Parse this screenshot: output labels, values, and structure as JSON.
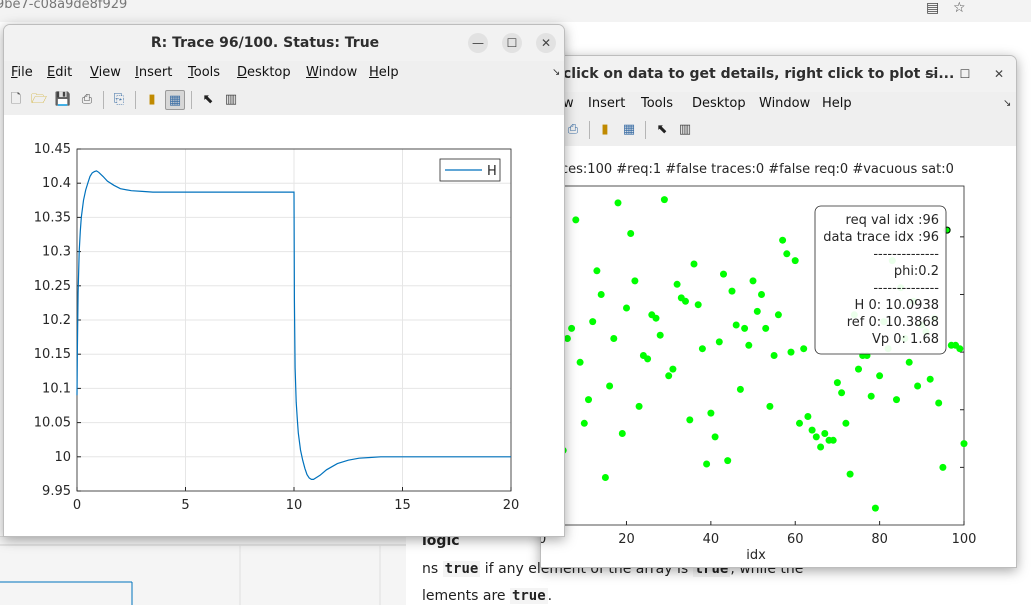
{
  "browser": {
    "url_fragment": "9be7-c08a9de8f929",
    "doc_lines": [
      {
        "pre": "logic",
        "code": "",
        "post": ""
      },
      {
        "pre": "ns ",
        "code": "true",
        "post": " if any element of the array is ",
        "code2": "true",
        "post2": ", while the"
      },
      {
        "pre": "lements are ",
        "code": "true",
        "post": "."
      }
    ]
  },
  "back_window": {
    "title": "click on data to get details, right click to plot si...",
    "menu": [
      "w",
      "Insert",
      "Tools",
      "Desktop",
      "Window",
      "Help"
    ],
    "stats": "ces:100  #req:1  #false traces:0  #false req:0  #vacuous sat:0",
    "datatip": [
      "req val idx :96",
      "data trace idx :96",
      "--------------",
      "phi:0.2",
      "--------------",
      "H 0: 10.0938",
      "ref 0: 10.3868",
      "Vp 0: 1.68"
    ],
    "chart_data": {
      "type": "scatter",
      "xlabel": "idx",
      "xlim": [
        -5,
        100
      ],
      "xticks": [
        "0",
        "20",
        "40",
        "60",
        "80",
        "100"
      ],
      "points_color": "#00ff00",
      "x": [
        1,
        2,
        3,
        4,
        5,
        6,
        7,
        8,
        9,
        10,
        11,
        12,
        13,
        14,
        15,
        16,
        17,
        18,
        19,
        20,
        21,
        22,
        23,
        24,
        25,
        26,
        27,
        28,
        29,
        30,
        31,
        32,
        33,
        34,
        35,
        36,
        37,
        38,
        39,
        40,
        41,
        42,
        43,
        44,
        45,
        46,
        47,
        48,
        49,
        50,
        51,
        52,
        53,
        54,
        55,
        56,
        57,
        58,
        59,
        60,
        61,
        62,
        63,
        64,
        65,
        66,
        67,
        68,
        69,
        70,
        71,
        72,
        73,
        74,
        75,
        76,
        77,
        78,
        79,
        80,
        81,
        82,
        83,
        84,
        85,
        86,
        87,
        88,
        89,
        90,
        91,
        92,
        93,
        94,
        95,
        96,
        97,
        98,
        99,
        100
      ],
      "y": [
        0.62,
        0.45,
        0.82,
        0.7,
        0.22,
        0.55,
        0.58,
        0.9,
        0.48,
        0.3,
        0.37,
        0.6,
        0.75,
        0.68,
        0.14,
        0.41,
        0.55,
        0.95,
        0.27,
        0.64,
        0.86,
        0.72,
        0.35,
        0.5,
        0.49,
        0.62,
        0.61,
        0.56,
        0.96,
        0.44,
        0.46,
        0.71,
        0.67,
        0.66,
        0.31,
        0.77,
        0.65,
        0.52,
        0.18,
        0.33,
        0.26,
        0.54,
        0.74,
        0.19,
        0.69,
        0.59,
        0.4,
        0.58,
        0.53,
        0.72,
        0.63,
        0.68,
        0.58,
        0.35,
        0.5,
        0.62,
        0.84,
        0.8,
        0.51,
        0.78,
        0.3,
        0.52,
        0.32,
        0.28,
        0.26,
        0.23,
        0.27,
        0.25,
        0.25,
        0.42,
        0.39,
        0.3,
        0.15,
        0.62,
        0.46,
        0.5,
        0.5,
        0.38,
        0.05,
        0.44,
        0.6,
        0.52,
        0.78,
        0.37,
        0.7,
        0.55,
        0.48,
        0.66,
        0.41,
        0.59,
        0.57,
        0.43,
        0.61,
        0.36,
        0.17,
        0.87,
        0.53,
        0.53,
        0.52,
        0.24
      ]
    }
  },
  "front_window": {
    "title": "R: Trace 96/100.  Status: True",
    "menu": [
      {
        "label": "File",
        "ul": "F",
        "rest": "ile"
      },
      {
        "label": "Edit",
        "ul": "E",
        "rest": "dit"
      },
      {
        "label": "View",
        "ul": "V",
        "rest": "iew"
      },
      {
        "label": "Insert",
        "ul": "I",
        "rest": "nsert"
      },
      {
        "label": "Tools",
        "ul": "T",
        "rest": "ools"
      },
      {
        "label": "Desktop",
        "ul": "D",
        "rest": "esktop"
      },
      {
        "label": "Window",
        "ul": "W",
        "rest": "indow"
      },
      {
        "label": "Help",
        "ul": "H",
        "rest": "elp"
      }
    ],
    "chart_data": {
      "type": "line",
      "xlim": [
        0,
        20
      ],
      "ylim": [
        9.95,
        10.45
      ],
      "xticks": [
        0,
        5,
        10,
        15,
        20
      ],
      "yticks": [
        9.95,
        10,
        10.05,
        10.1,
        10.15,
        10.2,
        10.25,
        10.3,
        10.35,
        10.4,
        10.45
      ],
      "ytick_labels": [
        "9.95",
        "10",
        "10.05",
        "10.1",
        "10.15",
        "10.2",
        "10.25",
        "10.3",
        "10.35",
        "10.4",
        "10.45"
      ],
      "grid": true,
      "legend": "top-right",
      "series": [
        {
          "name": "H",
          "color": "#0072bd",
          "x": [
            0,
            0.02,
            0.05,
            0.1,
            0.15,
            0.2,
            0.3,
            0.4,
            0.5,
            0.6,
            0.7,
            0.8,
            0.9,
            1.0,
            1.2,
            1.4,
            1.7,
            2.0,
            2.5,
            3.0,
            3.5,
            4.0,
            5.0,
            7.0,
            9.0,
            10.0,
            10.02,
            10.05,
            10.1,
            10.15,
            10.2,
            10.3,
            10.4,
            10.5,
            10.6,
            10.7,
            10.8,
            10.9,
            11.0,
            11.2,
            11.5,
            12.0,
            12.5,
            13.0,
            13.5,
            14.0,
            15.0,
            17.0,
            20.0
          ],
          "y": [
            10.09,
            10.16,
            10.24,
            10.3,
            10.33,
            10.35,
            10.375,
            10.39,
            10.4,
            10.41,
            10.415,
            10.417,
            10.418,
            10.416,
            10.41,
            10.403,
            10.397,
            10.392,
            10.389,
            10.388,
            10.387,
            10.387,
            10.387,
            10.387,
            10.387,
            10.387,
            10.23,
            10.13,
            10.08,
            10.055,
            10.035,
            10.01,
            9.995,
            9.983,
            9.974,
            9.969,
            9.967,
            9.967,
            9.969,
            9.973,
            9.981,
            9.99,
            9.995,
            9.998,
            9.999,
            10.0,
            10.0,
            10.0,
            10.0
          ]
        }
      ]
    }
  }
}
